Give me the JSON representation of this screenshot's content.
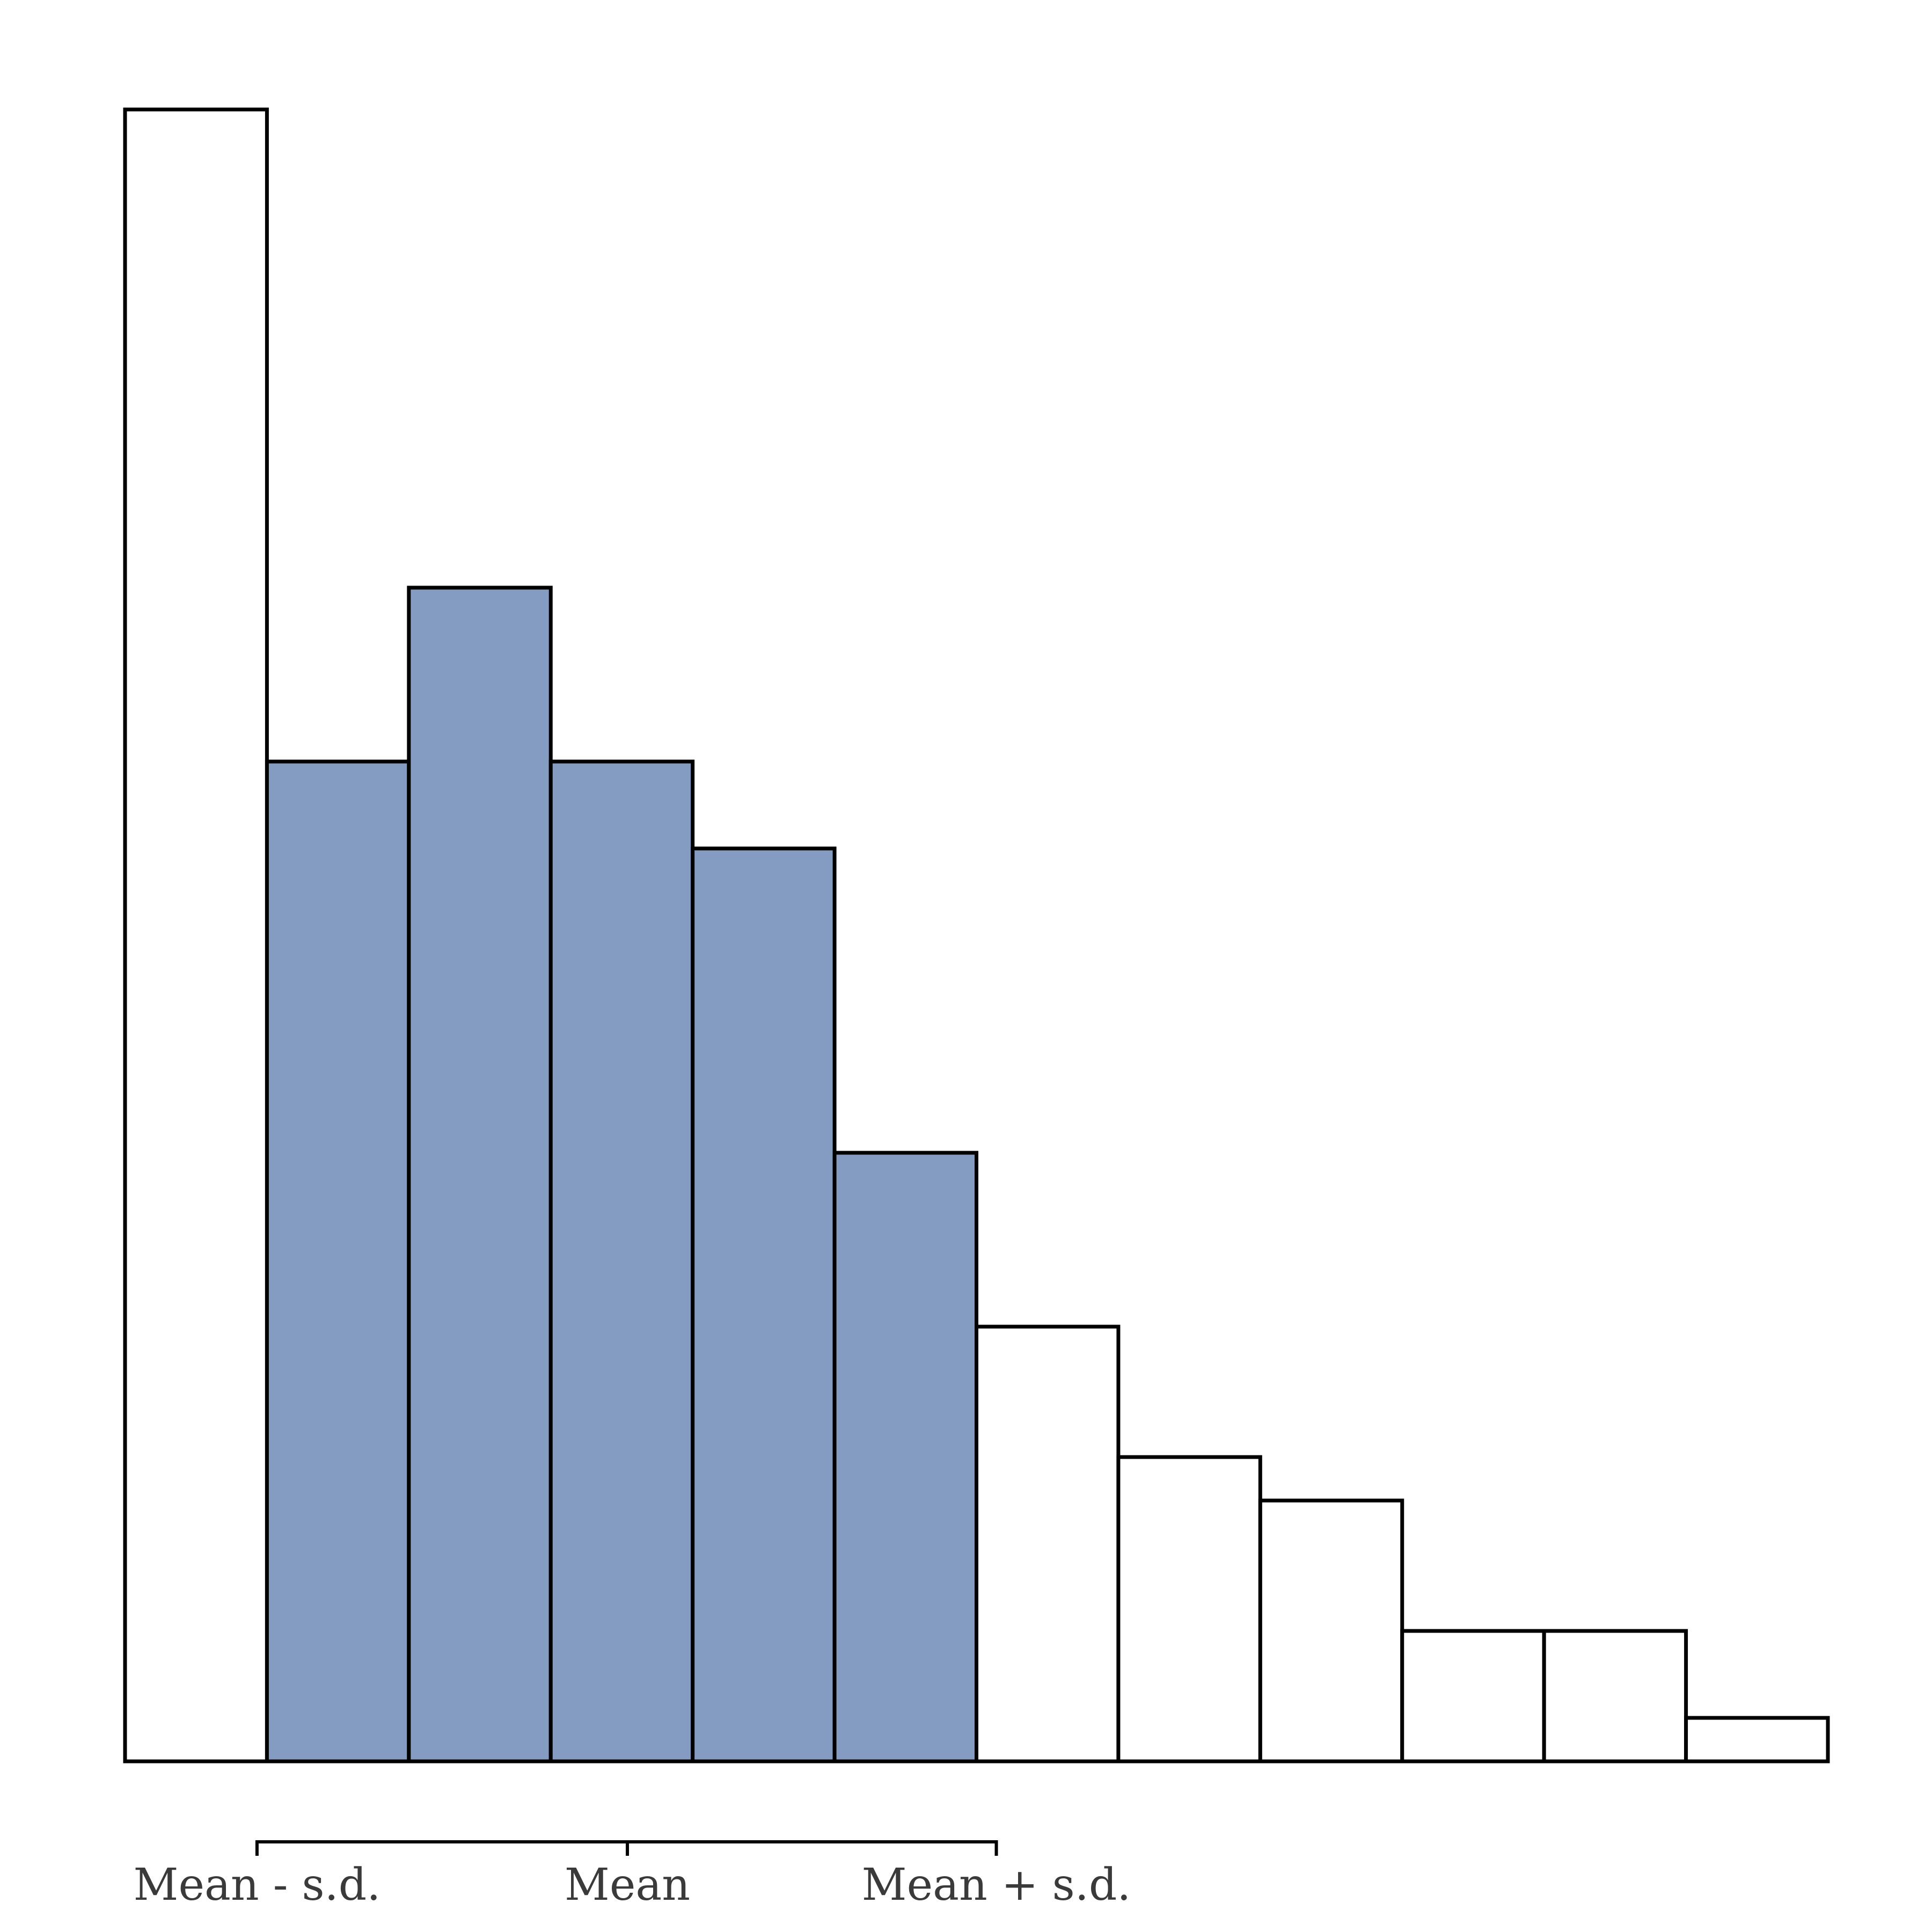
{
  "chart_data": {
    "type": "bar",
    "title": "",
    "xlabel": "",
    "ylabel": "",
    "ylim": [
      0,
      38
    ],
    "grid": false,
    "legend": "none",
    "bins": [
      {
        "value": 38,
        "highlighted": false
      },
      {
        "value": 23,
        "highlighted": true
      },
      {
        "value": 27,
        "highlighted": true
      },
      {
        "value": 23,
        "highlighted": true
      },
      {
        "value": 21,
        "highlighted": true
      },
      {
        "value": 14,
        "highlighted": true
      },
      {
        "value": 10,
        "highlighted": false
      },
      {
        "value": 7,
        "highlighted": false
      },
      {
        "value": 6,
        "highlighted": false
      },
      {
        "value": 3,
        "highlighted": false
      },
      {
        "value": 3,
        "highlighted": false
      },
      {
        "value": 1,
        "highlighted": false
      }
    ],
    "x_reference_ticks": [
      {
        "label": "Mean - s.d.",
        "bin_position": 0.93
      },
      {
        "label": "Mean",
        "bin_position": 3.54
      },
      {
        "label": "Mean + s.d.",
        "bin_position": 6.14
      }
    ],
    "colors": {
      "highlight_fill": "#849cc1",
      "plain_fill": "#ffffff",
      "edge": "#000000",
      "tick_text": "#3a3a3a"
    }
  }
}
